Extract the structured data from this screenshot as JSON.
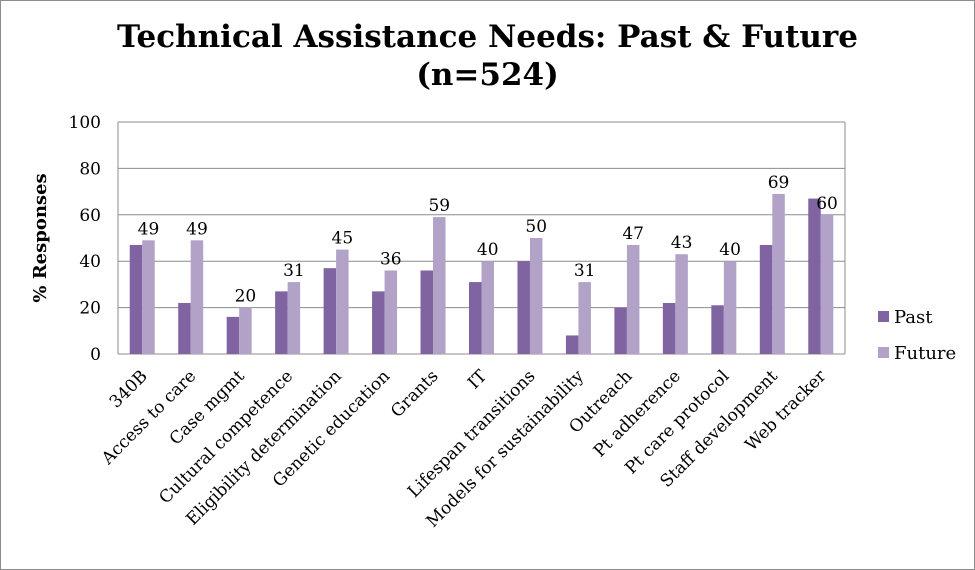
{
  "chart_data": {
    "type": "bar",
    "title_line1": "Technical Assistance Needs: Past & Future",
    "title_line2": "(n=524)",
    "xlabel": "",
    "ylabel": "% Responses",
    "ylim": [
      0,
      100
    ],
    "yticks": [
      0,
      20,
      40,
      60,
      80,
      100
    ],
    "grid": true,
    "legend_position": "right",
    "categories": [
      "340B",
      "Access to care",
      "Case mgmt",
      "Cultural competence",
      "Eligibility determination",
      "Genetic education",
      "Grants",
      "IT",
      "Lifespan transitions",
      "Models for sustainability",
      "Outreach",
      "Pt adherence",
      "Pt care protocol",
      "Staff development",
      "Web tracker"
    ],
    "series": [
      {
        "name": "Past",
        "color": "#8064a2",
        "values": [
          47,
          22,
          16,
          27,
          37,
          27,
          36,
          31,
          40,
          8,
          20,
          22,
          21,
          47,
          67
        ],
        "show_labels": false
      },
      {
        "name": "Future",
        "color": "#b3a2c7",
        "values": [
          49,
          49,
          20,
          31,
          45,
          36,
          59,
          40,
          50,
          31,
          47,
          43,
          40,
          69,
          60
        ],
        "show_labels": true
      }
    ]
  }
}
